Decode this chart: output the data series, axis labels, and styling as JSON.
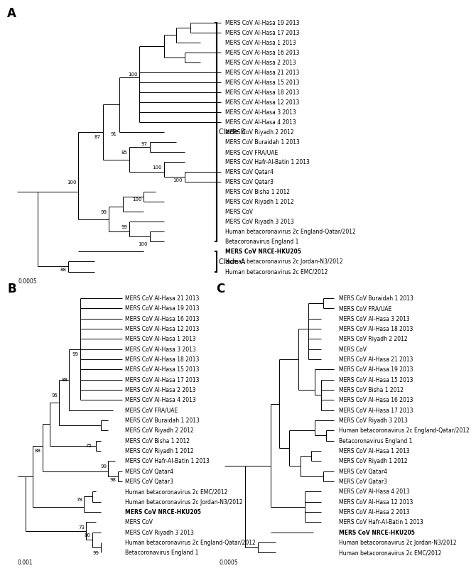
{
  "background_color": "#ffffff",
  "panel_label_fontsize": 12,
  "taxon_fontsize": 5.5,
  "bootstrap_fontsize": 5.0,
  "scale_fontsize": 5.5,
  "bold_taxon": "MERS CoV NRCE-HKU205",
  "treeA": {
    "taxa": [
      "MERS CoV Al-Hasa 19 2013",
      "MERS CoV Al-Hasa 17 2013",
      "MERS CoV Al-Hasa 1 2013",
      "MERS CoV Al-Hasa 16 2013",
      "MERS CoV Al-Hasa 2 2013",
      "MERS CoV Al-Hasa 21 2013",
      "MERS CoV Al-Hasa 15 2013",
      "MERS CoV Al-Hasa 18 2013",
      "MERS CoV Al-Hasa 12 2013",
      "MERS CoV Al-Hasa 3 2013",
      "MERS CoV Al-Hasa 4 2013",
      "MERS CoV Riyadh 2 2012",
      "MERS CoV Buraidah 1 2013",
      "MERS CoV FRA/UAE",
      "MERS CoV Hafr-Al-Batin 1 2013",
      "MERS CoV Qatar4",
      "MERS CoV Qatar3",
      "MERS CoV Bisha 1 2012",
      "MERS CoV Riyadh 1 2012",
      "MERS CoV",
      "MERS CoV Riyadh 3 2013",
      "Human betacoronavirus 2c England-Qatar/2012",
      "Betacoronavirus England 1",
      "MERS CoV NRCE-HKU205",
      "Human betacoronavirus 2c Jordan-N3/2012",
      "Human betacoronavirus 2c EMC/2012"
    ]
  },
  "treeB": {
    "taxa": [
      "MERS CoV Al-Hasa 21 2013",
      "MERS CoV Al-Hasa 19 2013",
      "MERS CoV Al-Hasa 16 2013",
      "MERS CoV Al-Hasa 12 2013",
      "MERS CoV Al-Hasa 1 2013",
      "MERS CoV Al-Hasa 3 2013",
      "MERS CoV Al-Hasa 18 2013",
      "MERS CoV Al-Hasa 15 2013",
      "MERS CoV Al-Hasa 17 2013",
      "MERS CoV Al-Hasa 2 2013",
      "MERS CoV Al-Hasa 4 2013",
      "MERS CoV FRA/UAE",
      "MERS CoV Buraidah 1 2013",
      "MERS CoV Riyadh 2 2012",
      "MERS CoV Bisha 1 2012",
      "MERS CoV Riyadh 1 2012",
      "MERS CoV Hafr-Al-Batin 1 2013",
      "MERS CoV Qatar4",
      "MERS CoV Qatar3",
      "Human betacoronavirus 2c EMC/2012",
      "Human betacoronavirus 2c Jordan-N3/2012",
      "MERS CoV NRCE-HKU205",
      "MERS CoV",
      "MERS CoV Riyadh 3 2013",
      "Human betacoronavirus 2c England-Qatar/2012",
      "Betacoronavirus England 1"
    ]
  },
  "treeC": {
    "taxa": [
      "MERS CoV Buraidah 1 2013",
      "MERS CoV FRA/UAE",
      "MERS CoV Al-Hasa 3 2013",
      "MERS CoV Al-Hasa 18 2013",
      "MERS CoV Riyadh 2 2012",
      "MERS CoV",
      "MERS CoV Al-Hasa 21 2013",
      "MERS CoV Al-Hasa 19 2013",
      "MERS CoV Al-Hasa 15 2013",
      "MERS CoV Bisha 1 2012",
      "MERS CoV Al-Hasa 16 2013",
      "MERS CoV Al-Hasa 17 2013",
      "MERS CoV Riyadh 3 2013",
      "Human betacoronavirus 2c England-Qatar/2012",
      "Betacoronavirus England 1",
      "MERS CoV Al-Hasa 1 2013",
      "MERS CoV Riyadh 1 2012",
      "MERS CoV Qatar4",
      "MERS CoV Qatar3",
      "MERS CoV Al-Hasa 4 2013",
      "MERS CoV Al-Hasa 12 2013",
      "MERS CoV Al-Hasa 2 2013",
      "MERS CoV Hafr-Al-Batin 1 2013",
      "MERS CoV NRCE-HKU205",
      "Human betacoronavirus 2c Jordan-N3/2012",
      "Human betacoronavirus 2c EMC/2012"
    ]
  }
}
